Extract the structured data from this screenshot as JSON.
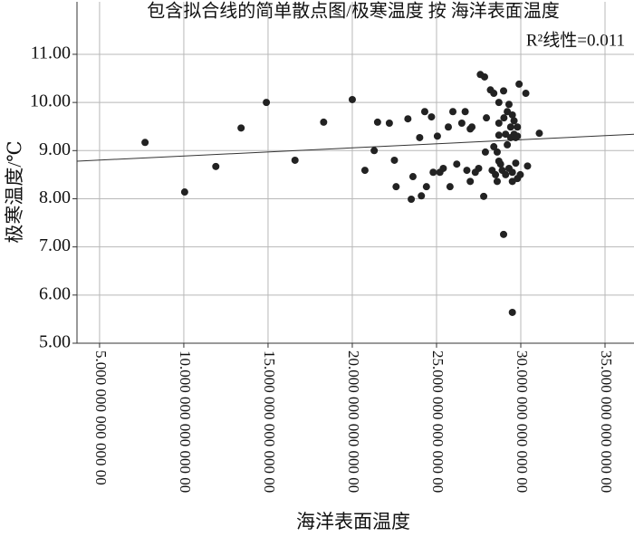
{
  "chart_data": {
    "type": "scatter",
    "title": "包含拟合线的简单散点图/极寒温度 按 海洋表面温度",
    "annotation": "R²线性=0.011",
    "x_label": "海洋表面温度",
    "y_label": "极寒温度/℃",
    "color": "#222222",
    "grid": true,
    "xlim": [
      3.66,
      36.72
    ],
    "ylim": [
      5,
      12.09
    ],
    "xticks": [
      {
        "value": 5,
        "label": "5.000 000 000 000 00"
      },
      {
        "value": 10,
        "label": "10.000 000 000 000 00"
      },
      {
        "value": 15,
        "label": "15.000 000 000 000 00"
      },
      {
        "value": 20,
        "label": "20.000 000 000 000 00"
      },
      {
        "value": 25,
        "label": "25.000 000 000 000 00"
      },
      {
        "value": 30,
        "label": "30.000 000 000 000 00"
      },
      {
        "value": 35,
        "label": "35.000 000 000 000 00"
      }
    ],
    "yticks": [
      {
        "value": 5,
        "label": "5.00"
      },
      {
        "value": 6,
        "label": "6.00"
      },
      {
        "value": 7,
        "label": "7.00"
      },
      {
        "value": 8,
        "label": "8.00"
      },
      {
        "value": 9,
        "label": "9.00"
      },
      {
        "value": 10,
        "label": "10.00"
      },
      {
        "value": 11,
        "label": "11.00"
      }
    ],
    "fit_line": {
      "x": [
        3.66,
        36.72
      ],
      "y": [
        8.78,
        9.34
      ]
    },
    "x": [
      7.7,
      10.05,
      11.9,
      13.4,
      14.9,
      16.6,
      18.3,
      20.0,
      20.75,
      21.3,
      21.5,
      22.2,
      22.5,
      22.6,
      23.3,
      23.5,
      23.6,
      24.0,
      24.1,
      24.3,
      24.4,
      24.7,
      24.8,
      25.05,
      25.2,
      25.4,
      25.7,
      25.8,
      25.97,
      26.2,
      26.5,
      26.7,
      26.8,
      27.0,
      27.1,
      27.0,
      27.3,
      27.5,
      27.6,
      27.8,
      27.85,
      27.9,
      27.96,
      28.2,
      28.3,
      28.4,
      28.4,
      28.5,
      28.6,
      28.6,
      28.7,
      28.7,
      28.7,
      28.7,
      28.8,
      28.9,
      28.98,
      28.98,
      29.0,
      29.1,
      29.1,
      29.2,
      29.2,
      29.3,
      29.3,
      29.4,
      29.4,
      29.5,
      29.5,
      29.5,
      29.5,
      29.6,
      29.6,
      29.7,
      29.7,
      29.8,
      29.8,
      29.8,
      29.9,
      29.97,
      30.3,
      30.4,
      31.1
    ],
    "values": [
      9.17,
      8.14,
      8.67,
      9.47,
      10.0,
      8.8,
      9.59,
      10.06,
      8.59,
      9.0,
      9.59,
      9.57,
      8.8,
      8.25,
      9.66,
      7.99,
      8.46,
      9.27,
      8.06,
      9.81,
      8.25,
      9.7,
      8.55,
      9.3,
      8.55,
      8.63,
      9.49,
      8.25,
      9.81,
      8.72,
      9.57,
      9.81,
      8.59,
      9.45,
      9.49,
      8.36,
      8.55,
      8.63,
      10.58,
      8.05,
      10.53,
      8.97,
      9.68,
      10.26,
      8.59,
      10.19,
      9.08,
      8.5,
      8.97,
      8.36,
      9.32,
      8.78,
      10.0,
      9.57,
      8.72,
      8.59,
      7.26,
      10.24,
      9.68,
      8.5,
      9.34,
      9.81,
      9.12,
      9.96,
      8.63,
      9.49,
      9.27,
      8.36,
      5.64,
      9.74,
      8.55,
      9.34,
      9.62,
      9.27,
      8.74,
      9.49,
      9.3,
      8.42,
      10.38,
      8.5,
      10.19,
      8.68,
      9.36
    ]
  }
}
